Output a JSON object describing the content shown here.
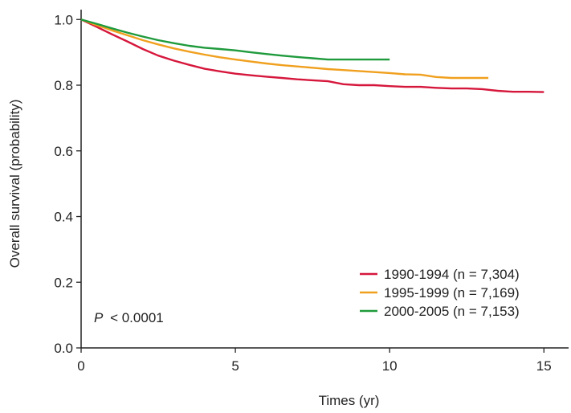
{
  "chart_data": {
    "type": "line",
    "title": "",
    "xlabel": "Times (yr)",
    "ylabel": "Overall survival (probability)",
    "xlim": [
      0,
      15.8
    ],
    "ylim": [
      0,
      1.03
    ],
    "xticks": [
      0,
      5,
      10,
      15
    ],
    "xtick_labels": [
      "0",
      "5",
      "10",
      "15"
    ],
    "yticks": [
      0.0,
      0.2,
      0.4,
      0.6,
      0.8,
      1.0
    ],
    "ytick_labels": [
      "0.0",
      "0.2",
      "0.4",
      "0.6",
      "0.8",
      "1.0"
    ],
    "grid": false,
    "legend_position": "bottom-right",
    "annotation": {
      "italic": "P",
      "rest": "< 0.0001"
    },
    "series": [
      {
        "name": "1990-1994 (n = 7,304)",
        "color": "#d6173c",
        "x": [
          0,
          0.5,
          1,
          1.5,
          2,
          2.5,
          3,
          3.5,
          4,
          4.5,
          5,
          5.5,
          6,
          6.5,
          7,
          7.5,
          8,
          8.5,
          9,
          9.5,
          10,
          10.5,
          11,
          11.5,
          12,
          12.5,
          13,
          13.5,
          14,
          14.5,
          15
        ],
        "y": [
          1.0,
          0.978,
          0.955,
          0.933,
          0.91,
          0.89,
          0.875,
          0.862,
          0.85,
          0.842,
          0.835,
          0.83,
          0.826,
          0.822,
          0.818,
          0.815,
          0.812,
          0.803,
          0.8,
          0.8,
          0.797,
          0.795,
          0.795,
          0.792,
          0.79,
          0.79,
          0.788,
          0.783,
          0.78,
          0.78,
          0.779
        ]
      },
      {
        "name": "1995-1999 (n = 7,169)",
        "color": "#f0a01e",
        "x": [
          0,
          0.5,
          1,
          1.5,
          2,
          2.5,
          3,
          3.5,
          4,
          4.5,
          5,
          5.5,
          6,
          6.5,
          7,
          7.5,
          8,
          8.5,
          9,
          9.5,
          10,
          10.5,
          11,
          11.5,
          12,
          12.5,
          13,
          13.2
        ],
        "y": [
          1.0,
          0.983,
          0.967,
          0.952,
          0.937,
          0.924,
          0.912,
          0.902,
          0.893,
          0.885,
          0.878,
          0.872,
          0.866,
          0.861,
          0.857,
          0.853,
          0.849,
          0.846,
          0.843,
          0.84,
          0.837,
          0.833,
          0.832,
          0.825,
          0.822,
          0.822,
          0.822,
          0.822
        ]
      },
      {
        "name": "2000-2005 (n = 7,153)",
        "color": "#1f9a3c",
        "x": [
          0,
          0.5,
          1,
          1.5,
          2,
          2.5,
          3,
          3.5,
          4,
          4.5,
          5,
          5.5,
          6,
          6.5,
          7,
          7.5,
          8,
          8.5,
          9,
          9.5,
          10
        ],
        "y": [
          1.0,
          0.987,
          0.973,
          0.96,
          0.948,
          0.937,
          0.928,
          0.92,
          0.914,
          0.91,
          0.906,
          0.9,
          0.895,
          0.89,
          0.886,
          0.882,
          0.878,
          0.878,
          0.878,
          0.878,
          0.878
        ]
      }
    ]
  }
}
